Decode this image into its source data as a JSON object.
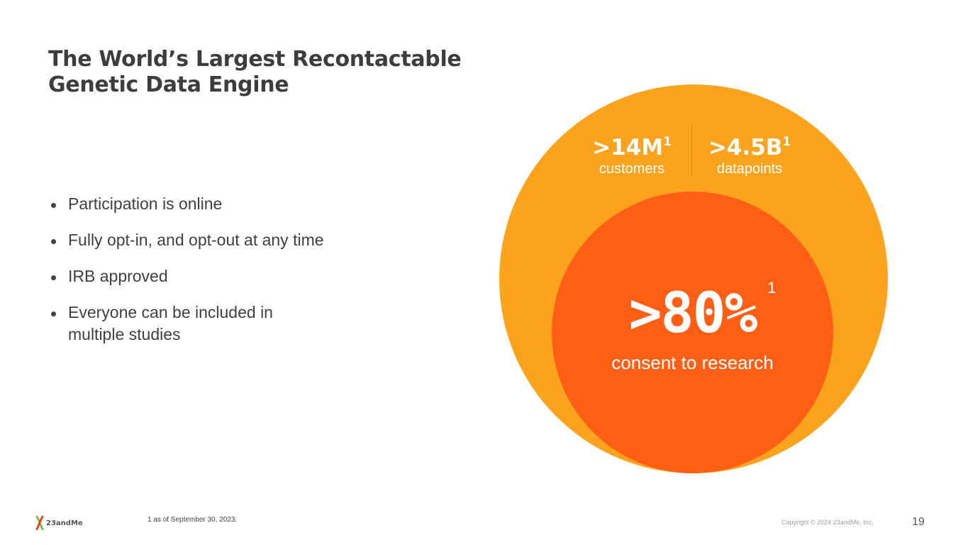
{
  "slide": {
    "title_line1": "The World’s Largest Recontactable",
    "title_line2": "Genetic Data Engine",
    "bullets": [
      "Participation is online",
      "Fully opt-in, and opt-out at any time",
      "IRB approved",
      "Everyone can be included in multiple studies"
    ]
  },
  "stats": {
    "customers": {
      "value": ">14M",
      "footnote_ref": "1",
      "label": "customers"
    },
    "datapoints": {
      "value": ">4.5B",
      "footnote_ref": "1",
      "label": "datapoints"
    },
    "consent": {
      "value": ">80%",
      "footnote_ref": "1",
      "label": "consent to research"
    }
  },
  "colors": {
    "outer_circle": "#fba31d",
    "inner_circle": "#ff5f15",
    "logo_x_left": "#7bc043",
    "logo_x_right": "#e8432e"
  },
  "footer": {
    "logo_text": "23andMe",
    "logo_icon": "x-chromosome-logo-icon",
    "footnote_number": "1",
    "footnote_text": "as of September 30, 2023.",
    "copyright": "Copyright © 2024 23andMe, Inc.",
    "page_number": "19"
  }
}
